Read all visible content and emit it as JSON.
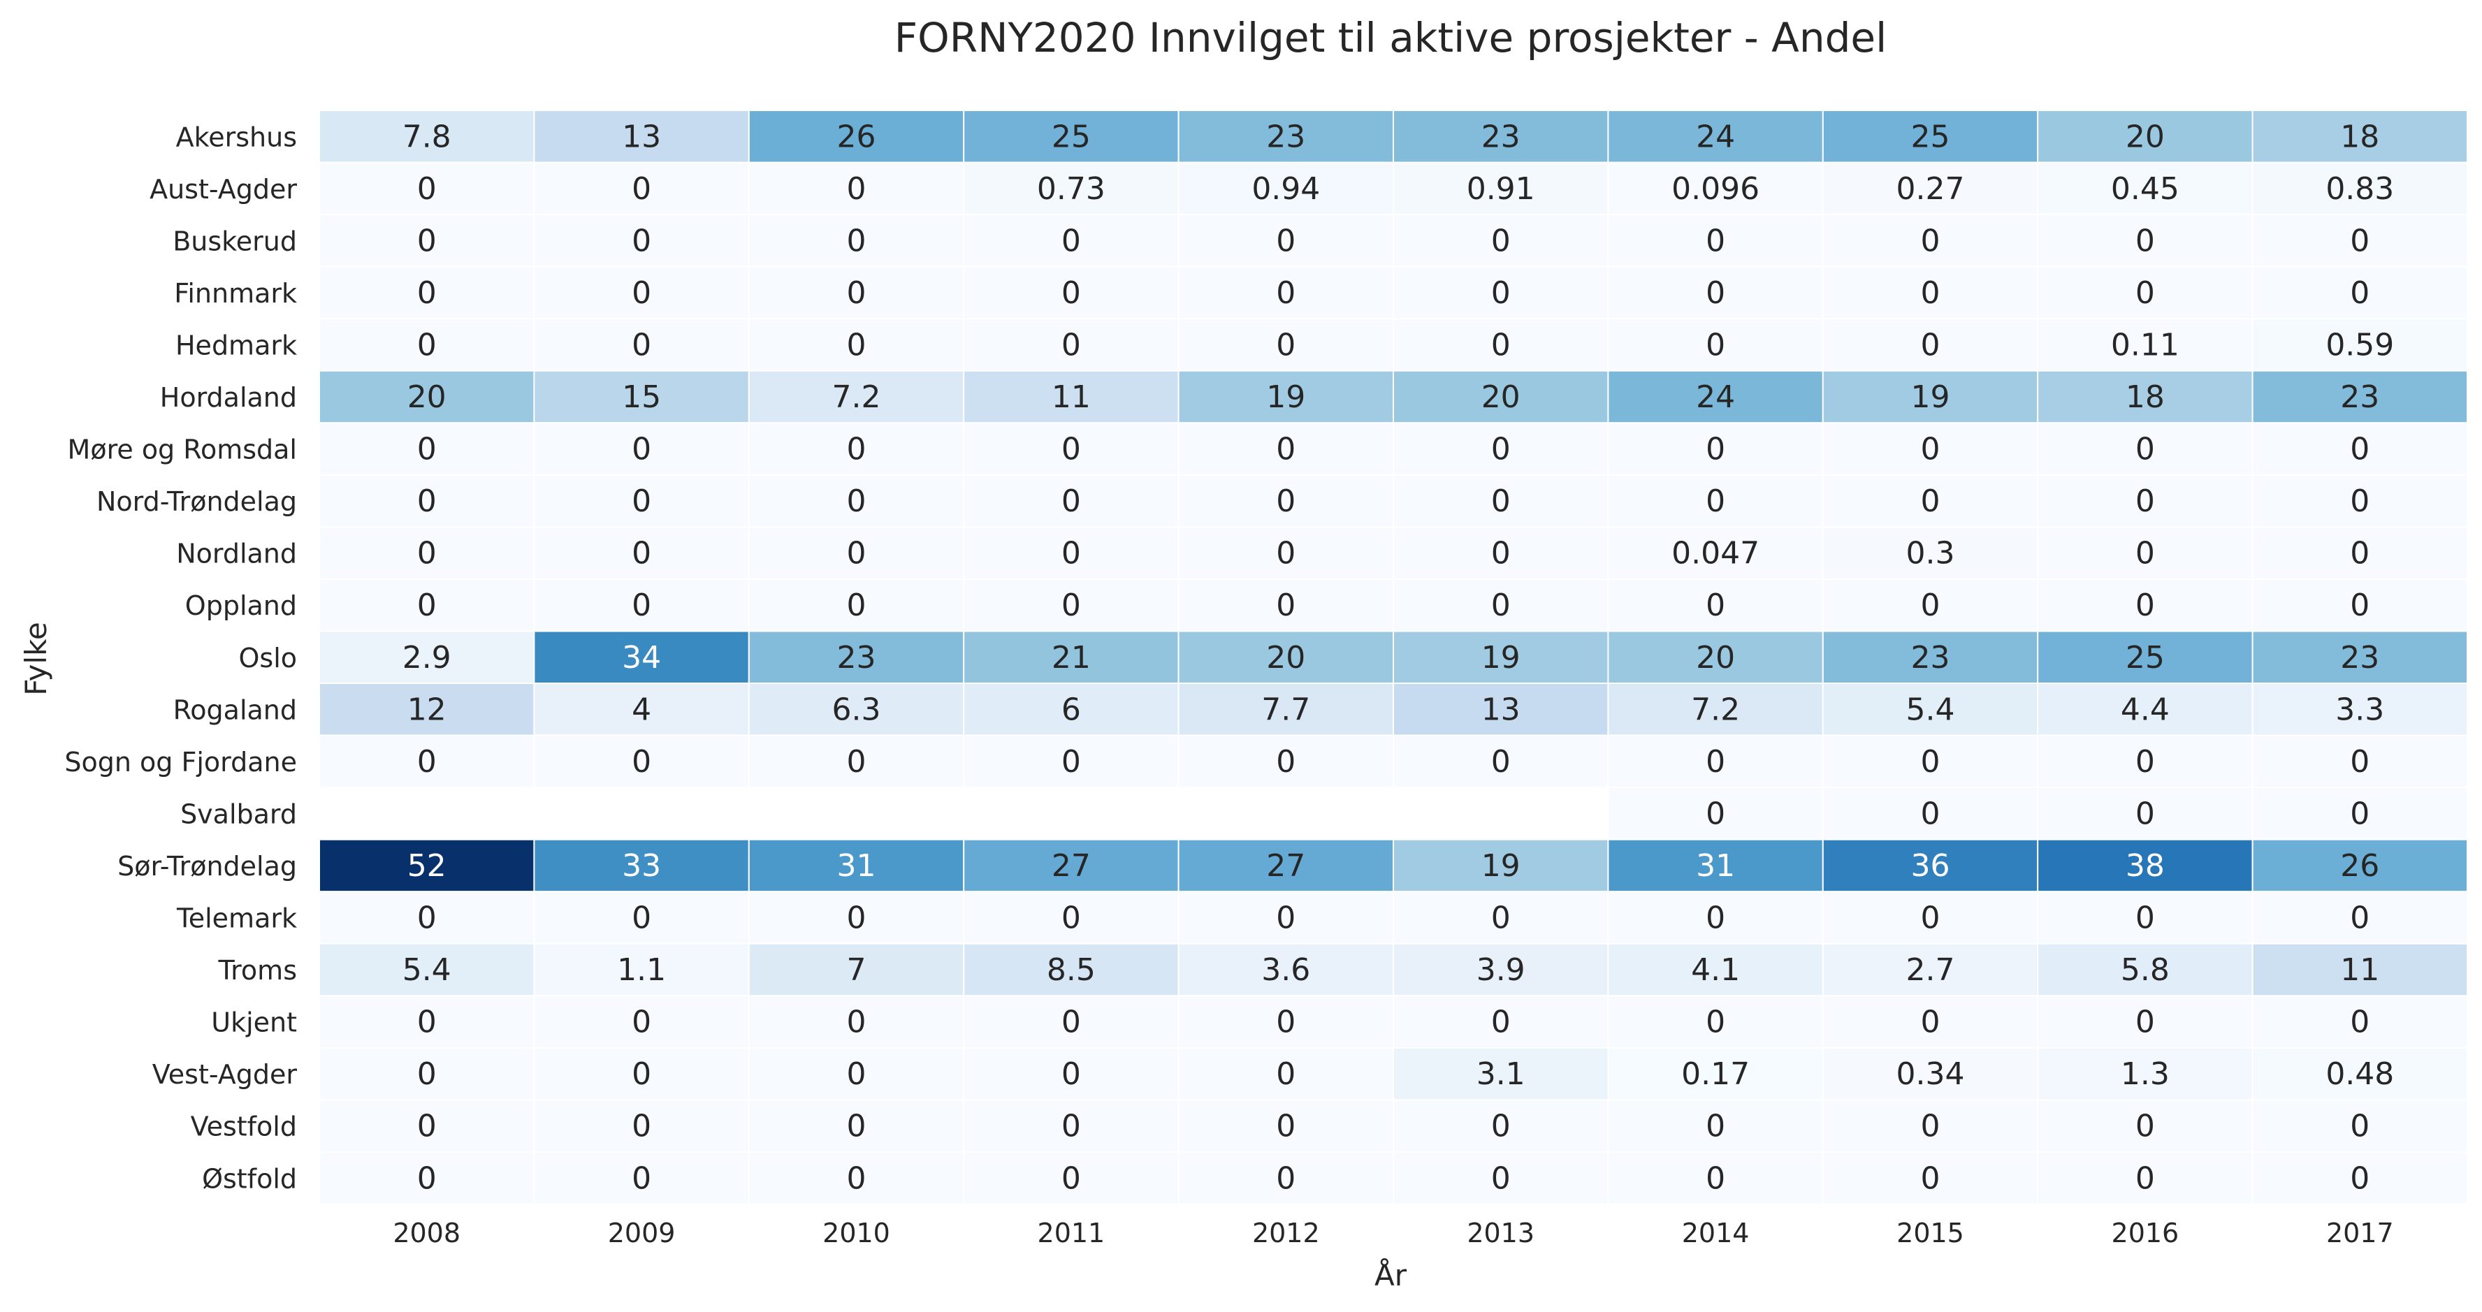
{
  "chart_data": {
    "type": "heatmap",
    "title": "FORNY2020 Innvilget til aktive prosjekter - Andel",
    "xlabel": "År",
    "ylabel": "Fylke",
    "colormap": "Blues",
    "vmin": 0,
    "vmax": 52,
    "grid": false,
    "x": [
      "2008",
      "2009",
      "2010",
      "2011",
      "2012",
      "2013",
      "2014",
      "2015",
      "2016",
      "2017"
    ],
    "y": [
      "Akershus",
      "Aust-Agder",
      "Buskerud",
      "Finnmark",
      "Hedmark",
      "Hordaland",
      "Møre og Romsdal",
      "Nord-Trøndelag",
      "Nordland",
      "Oppland",
      "Oslo",
      "Rogaland",
      "Sogn og Fjordane",
      "Svalbard",
      "Sør-Trøndelag",
      "Telemark",
      "Troms",
      "Ukjent",
      "Vest-Agder",
      "Vestfold",
      "Østfold"
    ],
    "values": [
      [
        "7.8",
        "13",
        "26",
        "25",
        "23",
        "23",
        "24",
        "25",
        "20",
        "18"
      ],
      [
        "0",
        "0",
        "0",
        "0.73",
        "0.94",
        "0.91",
        "0.096",
        "0.27",
        "0.45",
        "0.83"
      ],
      [
        "0",
        "0",
        "0",
        "0",
        "0",
        "0",
        "0",
        "0",
        "0",
        "0"
      ],
      [
        "0",
        "0",
        "0",
        "0",
        "0",
        "0",
        "0",
        "0",
        "0",
        "0"
      ],
      [
        "0",
        "0",
        "0",
        "0",
        "0",
        "0",
        "0",
        "0",
        "0.11",
        "0.59"
      ],
      [
        "20",
        "15",
        "7.2",
        "11",
        "19",
        "20",
        "24",
        "19",
        "18",
        "23"
      ],
      [
        "0",
        "0",
        "0",
        "0",
        "0",
        "0",
        "0",
        "0",
        "0",
        "0"
      ],
      [
        "0",
        "0",
        "0",
        "0",
        "0",
        "0",
        "0",
        "0",
        "0",
        "0"
      ],
      [
        "0",
        "0",
        "0",
        "0",
        "0",
        "0",
        "0.047",
        "0.3",
        "0",
        "0"
      ],
      [
        "0",
        "0",
        "0",
        "0",
        "0",
        "0",
        "0",
        "0",
        "0",
        "0"
      ],
      [
        "2.9",
        "34",
        "23",
        "21",
        "20",
        "19",
        "20",
        "23",
        "25",
        "23"
      ],
      [
        "12",
        "4",
        "6.3",
        "6",
        "7.7",
        "13",
        "7.2",
        "5.4",
        "4.4",
        "3.3"
      ],
      [
        "0",
        "0",
        "0",
        "0",
        "0",
        "0",
        "0",
        "0",
        "0",
        "0"
      ],
      [
        null,
        null,
        null,
        null,
        null,
        null,
        "0",
        "0",
        "0",
        "0"
      ],
      [
        "52",
        "33",
        "31",
        "27",
        "27",
        "19",
        "31",
        "36",
        "38",
        "26"
      ],
      [
        "0",
        "0",
        "0",
        "0",
        "0",
        "0",
        "0",
        "0",
        "0",
        "0"
      ],
      [
        "5.4",
        "1.1",
        "7",
        "8.5",
        "3.6",
        "3.9",
        "4.1",
        "2.7",
        "5.8",
        "11"
      ],
      [
        "0",
        "0",
        "0",
        "0",
        "0",
        "0",
        "0",
        "0",
        "0",
        "0"
      ],
      [
        "0",
        "0",
        "0",
        "0",
        "0",
        "3.1",
        "0.17",
        "0.34",
        "1.3",
        "0.48"
      ],
      [
        "0",
        "0",
        "0",
        "0",
        "0",
        "0",
        "0",
        "0",
        "0",
        "0"
      ],
      [
        "0",
        "0",
        "0",
        "0",
        "0",
        "0",
        "0",
        "0",
        "0",
        "0"
      ]
    ]
  }
}
